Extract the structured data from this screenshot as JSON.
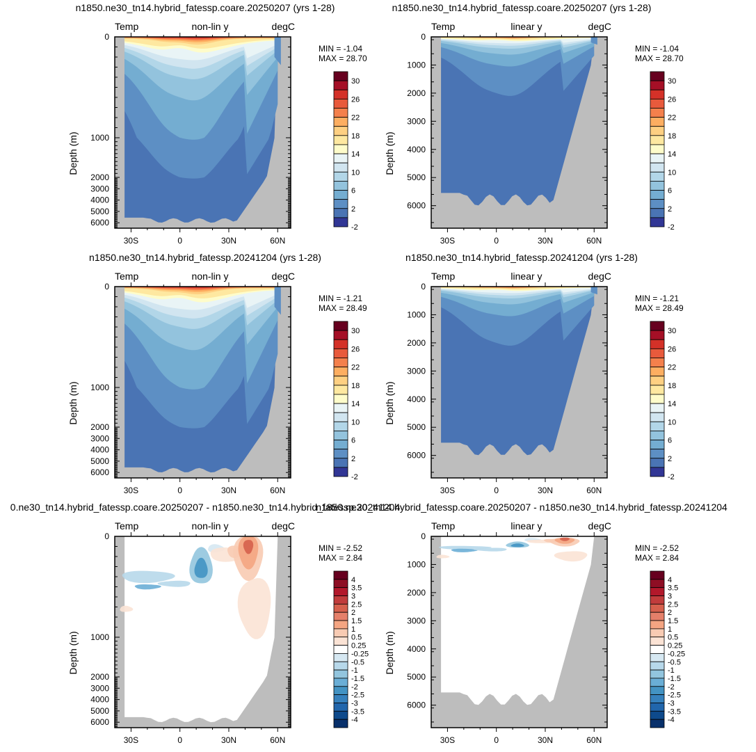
{
  "figure": {
    "panels": [
      {
        "title": "n1850.ne30_tn14.hybrid_fatessp.coare.20250207 (yrs 1-28)",
        "left_label": "Temp",
        "center_label": "non-lin y",
        "right_label": "degC",
        "ylabel": "Depth (m)",
        "ytick_labels": [
          "0",
          "1000",
          "2000",
          "3000",
          "4000",
          "5000",
          "6000"
        ],
        "xtick_labels": [
          "30S",
          "0",
          "30N",
          "60N"
        ],
        "min_label": "MIN =  -1.04",
        "max_label": "MAX =  28.70",
        "colorbar_labels": [
          "30",
          "26",
          "22",
          "18",
          "14",
          "10",
          "6",
          "2",
          "-2"
        ]
      },
      {
        "title": "n1850.ne30_tn14.hybrid_fatessp.coare.20250207 (yrs 1-28)",
        "left_label": "Temp",
        "center_label": "linear y",
        "right_label": "degC",
        "ylabel": "Depth (m)",
        "ytick_labels": [
          "0",
          "1000",
          "2000",
          "3000",
          "4000",
          "5000",
          "6000"
        ],
        "xtick_labels": [
          "30S",
          "0",
          "30N",
          "60N"
        ],
        "min_label": "MIN =  -1.04",
        "max_label": "MAX =  28.70",
        "colorbar_labels": [
          "30",
          "26",
          "22",
          "18",
          "14",
          "10",
          "6",
          "2",
          "-2"
        ]
      },
      {
        "title": "n1850.ne30_tn14.hybrid_fatessp.20241204 (yrs 1-28)",
        "left_label": "Temp",
        "center_label": "non-lin y",
        "right_label": "degC",
        "ylabel": "Depth (m)",
        "ytick_labels": [
          "0",
          "1000",
          "2000",
          "3000",
          "4000",
          "5000",
          "6000"
        ],
        "xtick_labels": [
          "30S",
          "0",
          "30N",
          "60N"
        ],
        "min_label": "MIN =  -1.21",
        "max_label": "MAX =  28.49",
        "colorbar_labels": [
          "30",
          "26",
          "22",
          "18",
          "14",
          "10",
          "6",
          "2",
          "-2"
        ]
      },
      {
        "title": "n1850.ne30_tn14.hybrid_fatessp.20241204 (yrs 1-28)",
        "left_label": "Temp",
        "center_label": "linear y",
        "right_label": "degC",
        "ylabel": "Depth (m)",
        "ytick_labels": [
          "0",
          "1000",
          "2000",
          "3000",
          "4000",
          "5000",
          "6000"
        ],
        "xtick_labels": [
          "30S",
          "0",
          "30N",
          "60N"
        ],
        "min_label": "MIN =  -1.21",
        "max_label": "MAX =  28.49",
        "colorbar_labels": [
          "30",
          "26",
          "22",
          "18",
          "14",
          "10",
          "6",
          "2",
          "-2"
        ]
      },
      {
        "title": "0.ne30_tn14.hybrid_fatessp.coare.20250207 - n1850.ne30_tn14.hybrid_fatessp.20241204",
        "left_label": "Temp",
        "center_label": "non-lin y",
        "right_label": "degC",
        "ylabel": "Depth (m)",
        "ytick_labels": [
          "0",
          "1000",
          "2000",
          "3000",
          "4000",
          "5000",
          "6000"
        ],
        "xtick_labels": [
          "30S",
          "0",
          "30N",
          "60N"
        ],
        "min_label": "MIN =  -2.52",
        "max_label": "MAX =  2.84",
        "colorbar_labels": [
          "4",
          "3.5",
          "3",
          "2.5",
          "2",
          "1.5",
          "1",
          "0.5",
          "0.25",
          "-0.25",
          "-0.5",
          "-1",
          "-1.5",
          "-2",
          "-2.5",
          "-3",
          "-3.5",
          "-4"
        ]
      },
      {
        "title": "n1850.ne30_tn14.hybrid_fatessp.coare.20250207 - n1850.ne30_tn14.hybrid_fatessp.20241204",
        "left_label": "Temp",
        "center_label": "linear y",
        "right_label": "degC",
        "ylabel": "Depth (m)",
        "ytick_labels": [
          "0",
          "1000",
          "2000",
          "3000",
          "4000",
          "5000",
          "6000"
        ],
        "xtick_labels": [
          "30S",
          "0",
          "30N",
          "60N"
        ],
        "min_label": "MIN =  -2.52",
        "max_label": "MAX =  2.84",
        "colorbar_labels": [
          "4",
          "3.5",
          "3",
          "2.5",
          "2",
          "1.5",
          "1",
          "0.5",
          "0.25",
          "-0.25",
          "-0.5",
          "-1",
          "-1.5",
          "-2",
          "-2.5",
          "-3",
          "-3.5",
          "-4"
        ]
      }
    ]
  },
  "chart_data": [
    {
      "type": "heatmap",
      "title": "n1850.ne30_tn14.hybrid_fatessp.coare.20250207 (yrs 1-28)",
      "variable": "Temp",
      "units": "degC",
      "y_axis": "non-lin y",
      "ylabel": "Depth (m)",
      "xlim": [
        -40,
        68
      ],
      "ylim": [
        0,
        6500
      ],
      "y_reversed": true,
      "xticks": [
        -30,
        0,
        30,
        60
      ],
      "yticks": [
        0,
        1000,
        2000,
        3000,
        4000,
        5000,
        6000
      ],
      "min": -1.04,
      "max": 28.7,
      "levels": [
        -2,
        0,
        2,
        4,
        6,
        8,
        10,
        12,
        14,
        16,
        18,
        20,
        22,
        24,
        26,
        28,
        30
      ],
      "colors": [
        "#313695",
        "#4a74b4",
        "#5d8fc4",
        "#74add1",
        "#93c3dd",
        "#b2d6e8",
        "#d1e5f0",
        "#e9f4f6",
        "#fefcca",
        "#fee8a0",
        "#fed082",
        "#fdae61",
        "#f4804c",
        "#e85a3c",
        "#d43128",
        "#a50f26",
        "#67001f"
      ]
    },
    {
      "type": "heatmap",
      "title": "n1850.ne30_tn14.hybrid_fatessp.coare.20250207 (yrs 1-28)",
      "variable": "Temp",
      "units": "degC",
      "y_axis": "linear y",
      "ylabel": "Depth (m)",
      "xlim": [
        -40,
        68
      ],
      "ylim": [
        0,
        6800
      ],
      "y_reversed": true,
      "xticks": [
        -30,
        0,
        30,
        60
      ],
      "yticks": [
        0,
        1000,
        2000,
        3000,
        4000,
        5000,
        6000
      ],
      "min": -1.04,
      "max": 28.7,
      "levels": [
        -2,
        0,
        2,
        4,
        6,
        8,
        10,
        12,
        14,
        16,
        18,
        20,
        22,
        24,
        26,
        28,
        30
      ],
      "colors": [
        "#313695",
        "#4a74b4",
        "#5d8fc4",
        "#74add1",
        "#93c3dd",
        "#b2d6e8",
        "#d1e5f0",
        "#e9f4f6",
        "#fefcca",
        "#fee8a0",
        "#fed082",
        "#fdae61",
        "#f4804c",
        "#e85a3c",
        "#d43128",
        "#a50f26",
        "#67001f"
      ]
    },
    {
      "type": "heatmap",
      "title": "n1850.ne30_tn14.hybrid_fatessp.20241204 (yrs 1-28)",
      "variable": "Temp",
      "units": "degC",
      "y_axis": "non-lin y",
      "ylabel": "Depth (m)",
      "xlim": [
        -40,
        68
      ],
      "ylim": [
        0,
        6500
      ],
      "y_reversed": true,
      "xticks": [
        -30,
        0,
        30,
        60
      ],
      "yticks": [
        0,
        1000,
        2000,
        3000,
        4000,
        5000,
        6000
      ],
      "min": -1.21,
      "max": 28.49,
      "levels": [
        -2,
        0,
        2,
        4,
        6,
        8,
        10,
        12,
        14,
        16,
        18,
        20,
        22,
        24,
        26,
        28,
        30
      ],
      "colors": [
        "#313695",
        "#4a74b4",
        "#5d8fc4",
        "#74add1",
        "#93c3dd",
        "#b2d6e8",
        "#d1e5f0",
        "#e9f4f6",
        "#fefcca",
        "#fee8a0",
        "#fed082",
        "#fdae61",
        "#f4804c",
        "#e85a3c",
        "#d43128",
        "#a50f26",
        "#67001f"
      ]
    },
    {
      "type": "heatmap",
      "title": "n1850.ne30_tn14.hybrid_fatessp.20241204 (yrs 1-28)",
      "variable": "Temp",
      "units": "degC",
      "y_axis": "linear y",
      "ylabel": "Depth (m)",
      "xlim": [
        -40,
        68
      ],
      "ylim": [
        0,
        6800
      ],
      "y_reversed": true,
      "xticks": [
        -30,
        0,
        30,
        60
      ],
      "yticks": [
        0,
        1000,
        2000,
        3000,
        4000,
        5000,
        6000
      ],
      "min": -1.21,
      "max": 28.49,
      "levels": [
        -2,
        0,
        2,
        4,
        6,
        8,
        10,
        12,
        14,
        16,
        18,
        20,
        22,
        24,
        26,
        28,
        30
      ],
      "colors": [
        "#313695",
        "#4a74b4",
        "#5d8fc4",
        "#74add1",
        "#93c3dd",
        "#b2d6e8",
        "#d1e5f0",
        "#e9f4f6",
        "#fefcca",
        "#fee8a0",
        "#fed082",
        "#fdae61",
        "#f4804c",
        "#e85a3c",
        "#d43128",
        "#a50f26",
        "#67001f"
      ]
    },
    {
      "type": "heatmap",
      "title": "0.ne30_tn14.hybrid_fatessp.coare.20250207 - n1850.ne30_tn14.hybrid_fatessp.20241204",
      "variable": "Temp",
      "units": "degC",
      "y_axis": "non-lin y",
      "ylabel": "Depth (m)",
      "xlim": [
        -40,
        68
      ],
      "ylim": [
        0,
        6500
      ],
      "y_reversed": true,
      "xticks": [
        -30,
        0,
        30,
        60
      ],
      "yticks": [
        0,
        1000,
        2000,
        3000,
        4000,
        5000,
        6000
      ],
      "min": -2.52,
      "max": 2.84,
      "levels": [
        -4,
        -3.5,
        -3,
        -2.5,
        -2,
        -1.5,
        -1,
        -0.5,
        -0.25,
        0.25,
        0.5,
        1,
        1.5,
        2,
        2.5,
        3,
        3.5,
        4
      ],
      "colors": [
        "#08306b",
        "#0e4a8c",
        "#2166ac",
        "#3681bd",
        "#4393c3",
        "#6aaed6",
        "#92c5de",
        "#b7d8ea",
        "#d6e8f2",
        "#ffffff",
        "#fbe3d5",
        "#f8cbb3",
        "#f4a582",
        "#e5806a",
        "#d6604d",
        "#c13c3c",
        "#b2182b",
        "#8e0e24",
        "#67001f"
      ]
    },
    {
      "type": "heatmap",
      "title": "n1850.ne30_tn14.hybrid_fatessp.coare.20250207 - n1850.ne30_tn14.hybrid_fatessp.20241204",
      "variable": "Temp",
      "units": "degC",
      "y_axis": "linear y",
      "ylabel": "Depth (m)",
      "xlim": [
        -40,
        68
      ],
      "ylim": [
        0,
        6800
      ],
      "y_reversed": true,
      "xticks": [
        -30,
        0,
        30,
        60
      ],
      "yticks": [
        0,
        1000,
        2000,
        3000,
        4000,
        5000,
        6000
      ],
      "min": -2.52,
      "max": 2.84,
      "levels": [
        -4,
        -3.5,
        -3,
        -2.5,
        -2,
        -1.5,
        -1,
        -0.5,
        -0.25,
        0.25,
        0.5,
        1,
        1.5,
        2,
        2.5,
        3,
        3.5,
        4
      ],
      "colors": [
        "#08306b",
        "#0e4a8c",
        "#2166ac",
        "#3681bd",
        "#4393c3",
        "#6aaed6",
        "#92c5de",
        "#b7d8ea",
        "#d6e8f2",
        "#ffffff",
        "#fbe3d5",
        "#f8cbb3",
        "#f4a582",
        "#e5806a",
        "#d6604d",
        "#c13c3c",
        "#b2182b",
        "#8e0e24",
        "#67001f"
      ]
    }
  ]
}
